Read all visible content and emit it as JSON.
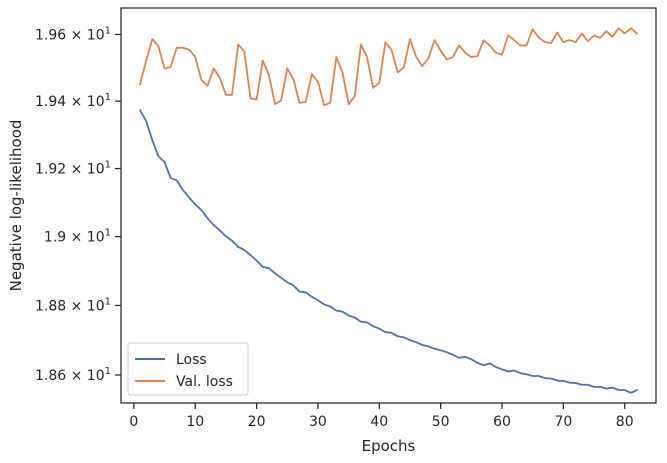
{
  "chart_data": {
    "type": "line",
    "xlabel": "Epochs",
    "ylabel": "Negative log-likelihood",
    "yscale": "log",
    "xlim": [
      -2.1,
      85.1
    ],
    "ylim": [
      18.52,
      19.68
    ],
    "xticks": [
      0,
      10,
      20,
      30,
      40,
      50,
      60,
      70,
      80
    ],
    "xtick_labels": [
      "0",
      "10",
      "20",
      "30",
      "40",
      "50",
      "60",
      "70",
      "80"
    ],
    "yticks": [
      18.6,
      18.8,
      19.0,
      19.2,
      19.4,
      19.6
    ],
    "ytick_labels": [
      {
        "mantissa": "1.86",
        "base": "10",
        "exp": "1"
      },
      {
        "mantissa": "1.88",
        "base": "10",
        "exp": "1"
      },
      {
        "mantissa": "1.9",
        "base": "10",
        "exp": "1"
      },
      {
        "mantissa": "1.92",
        "base": "10",
        "exp": "1"
      },
      {
        "mantissa": "1.94",
        "base": "10",
        "exp": "1"
      },
      {
        "mantissa": "1.96",
        "base": "10",
        "exp": "1"
      }
    ],
    "times_symbol": "×",
    "legend_position": "lower left",
    "grid": false,
    "series": [
      {
        "name": "Loss",
        "color": "#4c72b0",
        "x": [
          1,
          2,
          3,
          4,
          5,
          6,
          7,
          8,
          9,
          10,
          11,
          12,
          13,
          14,
          15,
          16,
          17,
          18,
          19,
          20,
          21,
          22,
          23,
          24,
          25,
          26,
          27,
          28,
          29,
          30,
          31,
          32,
          33,
          34,
          35,
          36,
          37,
          38,
          39,
          40,
          41,
          42,
          43,
          44,
          45,
          46,
          47,
          48,
          49,
          50,
          51,
          52,
          53,
          54,
          55,
          56,
          57,
          58,
          59,
          60,
          61,
          62,
          63,
          64,
          65,
          66,
          67,
          68,
          69,
          70,
          71,
          72,
          73,
          74,
          75,
          76,
          77,
          78,
          79,
          80,
          81,
          82
        ],
        "values": [
          19.373,
          19.341,
          19.284,
          19.236,
          19.219,
          19.172,
          19.165,
          19.136,
          19.115,
          19.094,
          19.078,
          19.054,
          19.034,
          19.018,
          19.001,
          18.988,
          18.97,
          18.961,
          18.946,
          18.93,
          18.912,
          18.908,
          18.893,
          18.88,
          18.867,
          18.858,
          18.84,
          18.838,
          18.825,
          18.815,
          18.803,
          18.797,
          18.785,
          18.782,
          18.771,
          18.765,
          18.753,
          18.751,
          18.74,
          18.733,
          18.723,
          18.721,
          18.711,
          18.708,
          18.7,
          18.694,
          18.686,
          18.682,
          18.675,
          18.671,
          18.665,
          18.658,
          18.649,
          18.652,
          18.645,
          18.635,
          18.628,
          18.633,
          18.623,
          18.616,
          18.61,
          18.613,
          18.605,
          18.602,
          18.597,
          18.597,
          18.591,
          18.59,
          18.584,
          18.583,
          18.578,
          18.577,
          18.572,
          18.572,
          18.566,
          18.566,
          18.561,
          18.564,
          18.557,
          18.557,
          18.549,
          18.557
        ]
      },
      {
        "name": "Val. loss",
        "color": "#dd8452",
        "x": [
          1,
          2,
          3,
          4,
          5,
          6,
          7,
          8,
          9,
          10,
          11,
          12,
          13,
          14,
          15,
          16,
          17,
          18,
          19,
          20,
          21,
          22,
          23,
          24,
          25,
          26,
          27,
          28,
          29,
          30,
          31,
          32,
          33,
          34,
          35,
          36,
          37,
          38,
          39,
          40,
          41,
          42,
          43,
          44,
          45,
          46,
          47,
          48,
          49,
          50,
          51,
          52,
          53,
          54,
          55,
          56,
          57,
          58,
          59,
          60,
          61,
          62,
          63,
          64,
          65,
          66,
          67,
          68,
          69,
          70,
          71,
          72,
          73,
          74,
          75,
          76,
          77,
          78,
          79,
          80,
          81,
          82
        ],
        "values": [
          19.45,
          19.521,
          19.586,
          19.565,
          19.497,
          19.503,
          19.56,
          19.56,
          19.554,
          19.533,
          19.463,
          19.446,
          19.498,
          19.47,
          19.419,
          19.419,
          19.57,
          19.549,
          19.409,
          19.405,
          19.521,
          19.479,
          19.391,
          19.402,
          19.498,
          19.466,
          19.395,
          19.398,
          19.481,
          19.458,
          19.388,
          19.395,
          19.532,
          19.486,
          19.391,
          19.415,
          19.57,
          19.532,
          19.44,
          19.455,
          19.577,
          19.553,
          19.486,
          19.501,
          19.586,
          19.533,
          19.505,
          19.528,
          19.583,
          19.552,
          19.525,
          19.532,
          19.567,
          19.545,
          19.532,
          19.535,
          19.583,
          19.567,
          19.545,
          19.539,
          19.598,
          19.583,
          19.567,
          19.567,
          19.616,
          19.59,
          19.577,
          19.574,
          19.606,
          19.577,
          19.583,
          19.577,
          19.603,
          19.58,
          19.597,
          19.59,
          19.61,
          19.593,
          19.619,
          19.603,
          19.619,
          19.603
        ]
      }
    ]
  }
}
